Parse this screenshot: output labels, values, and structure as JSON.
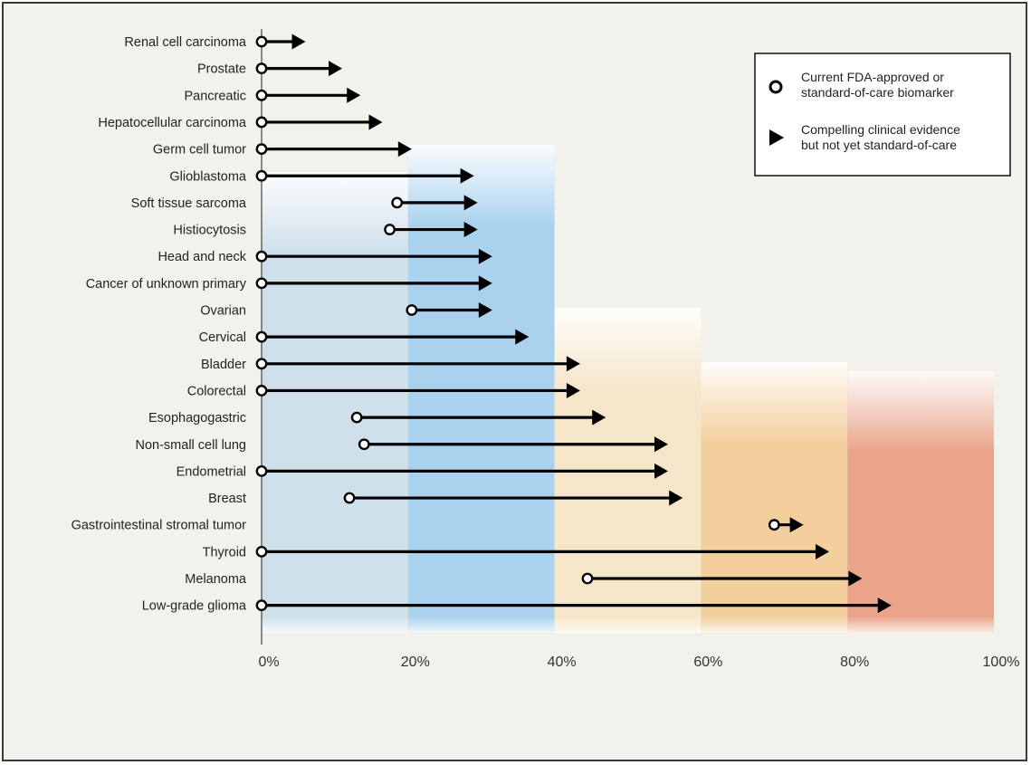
{
  "chart_data": {
    "type": "range-arrow",
    "title": "",
    "xlabel": "",
    "ylabel": "",
    "xlim": [
      0,
      100
    ],
    "x_ticks": [
      "0%",
      "20%",
      "40%",
      "60%",
      "80%",
      "100%"
    ],
    "legend": {
      "placement": "top-right",
      "items": [
        {
          "marker": "circle",
          "lines": [
            "Current FDA-approved or",
            "standard-of-care biomarker"
          ]
        },
        {
          "marker": "arrow",
          "lines": [
            "Compelling clinical evidence",
            "but not yet standard-of-care"
          ]
        }
      ]
    },
    "bands": [
      {
        "from": 0,
        "to": 20,
        "color": "#cfe0ea"
      },
      {
        "from": 20,
        "to": 40,
        "color": "#a9d2ee"
      },
      {
        "from": 40,
        "to": 60,
        "color": "#f6e6c9"
      },
      {
        "from": 60,
        "to": 80,
        "color": "#f3cf9d"
      },
      {
        "from": 80,
        "to": 100,
        "color": "#e9a48a"
      }
    ],
    "rows": [
      {
        "label": "Renal cell carcinoma",
        "current": 0,
        "potential": 6
      },
      {
        "label": "Prostate",
        "current": 0,
        "potential": 11
      },
      {
        "label": "Pancreatic",
        "current": 0,
        "potential": 13.5
      },
      {
        "label": "Hepatocellular carcinoma",
        "current": 0,
        "potential": 16.5
      },
      {
        "label": "Germ cell tumor",
        "current": 0,
        "potential": 20.5
      },
      {
        "label": "Glioblastoma",
        "current": 0,
        "potential": 29
      },
      {
        "label": "Soft tissue sarcoma",
        "current": 18.5,
        "potential": 29.5
      },
      {
        "label": "Histiocytosis",
        "current": 17.5,
        "potential": 29.5
      },
      {
        "label": "Head and neck",
        "current": 0,
        "potential": 31.5
      },
      {
        "label": "Cancer of unknown primary",
        "current": 0,
        "potential": 31.5
      },
      {
        "label": "Ovarian",
        "current": 20.5,
        "potential": 31.5
      },
      {
        "label": "Cervical",
        "current": 0,
        "potential": 36.5
      },
      {
        "label": "Bladder",
        "current": 0,
        "potential": 43.5
      },
      {
        "label": "Colorectal",
        "current": 0,
        "potential": 43.5
      },
      {
        "label": "Esophagogastric",
        "current": 13,
        "potential": 47
      },
      {
        "label": "Non-small cell lung",
        "current": 14,
        "potential": 55.5
      },
      {
        "label": "Endometrial",
        "current": 0,
        "potential": 55.5
      },
      {
        "label": "Breast",
        "current": 12,
        "potential": 57.5
      },
      {
        "label": "Gastrointestinal stromal tumor",
        "current": 70,
        "potential": 74
      },
      {
        "label": "Thyroid",
        "current": 0,
        "potential": 77.5
      },
      {
        "label": "Melanoma",
        "current": 44.5,
        "potential": 82
      },
      {
        "label": "Low-grade glioma",
        "current": 0,
        "potential": 86
      }
    ]
  }
}
